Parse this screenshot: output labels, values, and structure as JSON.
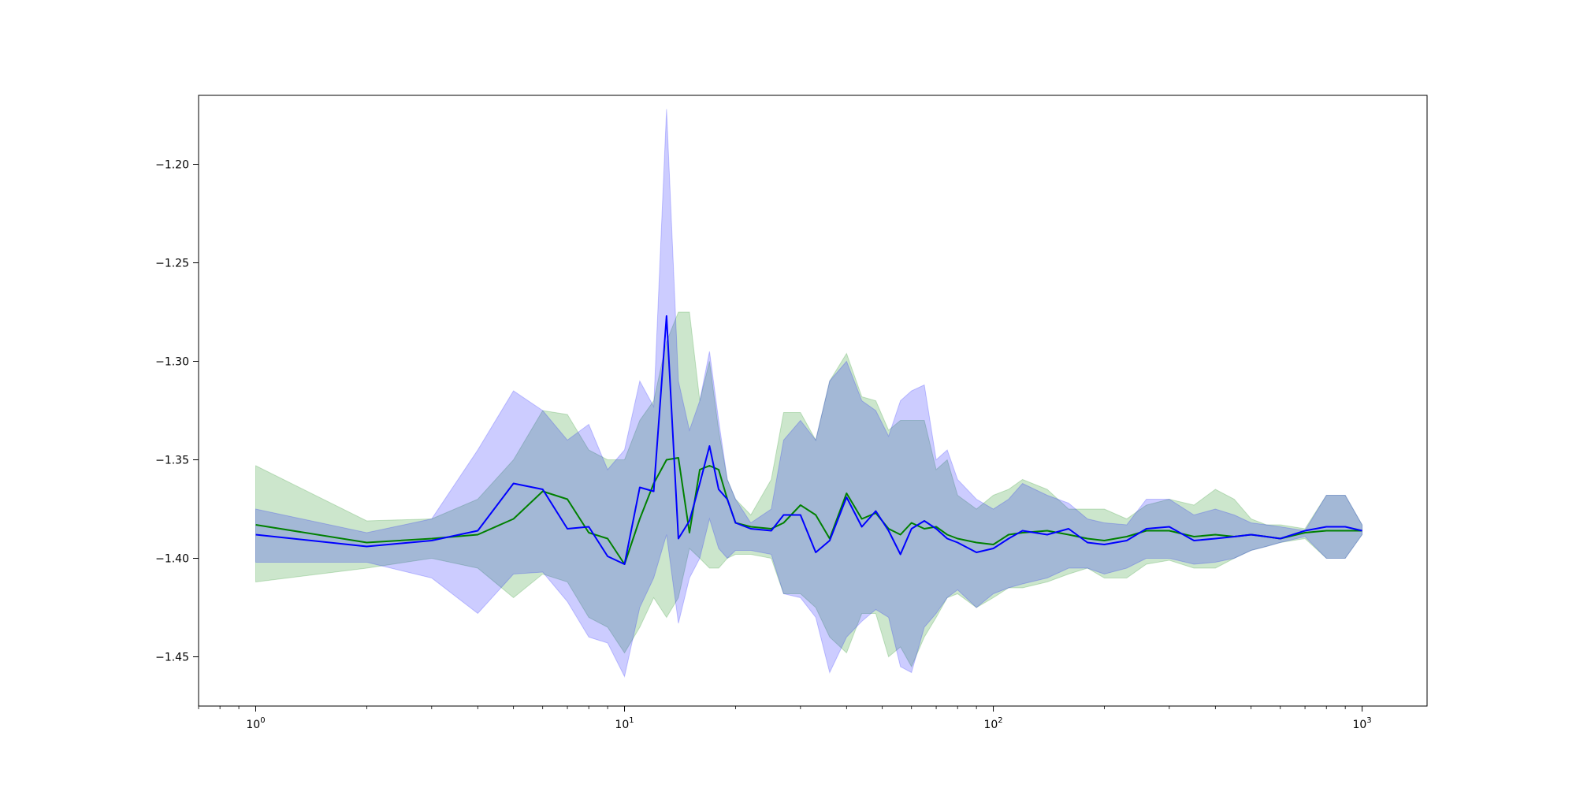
{
  "chart_data": {
    "type": "line",
    "title": "",
    "xlabel": "",
    "ylabel": "",
    "x_scale": "log",
    "xlim": [
      0.7,
      1500
    ],
    "ylim": [
      -1.475,
      -1.165
    ],
    "grid": false,
    "x_major_ticks": [
      {
        "value": 1,
        "base": "10",
        "exp": "0"
      },
      {
        "value": 10,
        "base": "10",
        "exp": "1"
      },
      {
        "value": 100,
        "base": "10",
        "exp": "2"
      },
      {
        "value": 1000,
        "base": "10",
        "exp": "3"
      }
    ],
    "y_ticks": [
      {
        "value": -1.2,
        "label": "−1.20"
      },
      {
        "value": -1.25,
        "label": "−1.25"
      },
      {
        "value": -1.3,
        "label": "−1.30"
      },
      {
        "value": -1.35,
        "label": "−1.35"
      },
      {
        "value": -1.4,
        "label": "−1.40"
      },
      {
        "value": -1.45,
        "label": "−1.45"
      }
    ],
    "series": [
      {
        "color": "#008000",
        "band_color": "#008000",
        "band_opacity": 0.2,
        "x": [
          1,
          2,
          3,
          4,
          5,
          6,
          7,
          8,
          9,
          10,
          11,
          12,
          13,
          14,
          15,
          16,
          17,
          18,
          19,
          20,
          22,
          25,
          27,
          30,
          33,
          36,
          40,
          44,
          48,
          52,
          56,
          60,
          65,
          70,
          75,
          80,
          90,
          100,
          110,
          120,
          140,
          160,
          180,
          200,
          230,
          260,
          300,
          350,
          400,
          450,
          500,
          550,
          600,
          700,
          800,
          900,
          1000
        ],
        "y": [
          -1.383,
          -1.392,
          -1.39,
          -1.388,
          -1.38,
          -1.366,
          -1.37,
          -1.387,
          -1.39,
          -1.403,
          -1.38,
          -1.362,
          -1.35,
          -1.349,
          -1.387,
          -1.355,
          -1.353,
          -1.355,
          -1.37,
          -1.382,
          -1.384,
          -1.385,
          -1.382,
          -1.373,
          -1.378,
          -1.39,
          -1.367,
          -1.38,
          -1.377,
          -1.385,
          -1.388,
          -1.382,
          -1.385,
          -1.384,
          -1.388,
          -1.39,
          -1.392,
          -1.393,
          -1.388,
          -1.387,
          -1.386,
          -1.388,
          -1.39,
          -1.391,
          -1.389,
          -1.386,
          -1.386,
          -1.389,
          -1.388,
          -1.389,
          -1.388,
          -1.389,
          -1.39,
          -1.387,
          -1.386,
          -1.386,
          -1.386
        ],
        "upper": [
          -1.353,
          -1.381,
          -1.38,
          -1.37,
          -1.35,
          -1.325,
          -1.327,
          -1.345,
          -1.35,
          -1.35,
          -1.33,
          -1.32,
          -1.29,
          -1.275,
          -1.275,
          -1.32,
          -1.3,
          -1.335,
          -1.36,
          -1.37,
          -1.378,
          -1.36,
          -1.326,
          -1.326,
          -1.34,
          -1.31,
          -1.296,
          -1.318,
          -1.32,
          -1.335,
          -1.33,
          -1.33,
          -1.33,
          -1.355,
          -1.35,
          -1.368,
          -1.375,
          -1.368,
          -1.365,
          -1.36,
          -1.365,
          -1.375,
          -1.375,
          -1.375,
          -1.38,
          -1.373,
          -1.37,
          -1.373,
          -1.365,
          -1.37,
          -1.38,
          -1.383,
          -1.383,
          -1.385,
          -1.368,
          -1.368,
          -1.383
        ],
        "lower": [
          -1.412,
          -1.405,
          -1.4,
          -1.405,
          -1.42,
          -1.408,
          -1.412,
          -1.43,
          -1.435,
          -1.448,
          -1.435,
          -1.42,
          -1.43,
          -1.42,
          -1.395,
          -1.4,
          -1.405,
          -1.405,
          -1.4,
          -1.398,
          -1.398,
          -1.4,
          -1.418,
          -1.418,
          -1.425,
          -1.44,
          -1.448,
          -1.428,
          -1.428,
          -1.45,
          -1.445,
          -1.455,
          -1.44,
          -1.43,
          -1.42,
          -1.418,
          -1.425,
          -1.42,
          -1.415,
          -1.415,
          -1.412,
          -1.408,
          -1.405,
          -1.41,
          -1.41,
          -1.403,
          -1.401,
          -1.405,
          -1.405,
          -1.4,
          -1.396,
          -1.394,
          -1.392,
          -1.39,
          -1.4,
          -1.4,
          -1.388
        ]
      },
      {
        "color": "#0000ff",
        "band_color": "#0000ff",
        "band_opacity": 0.2,
        "x": [
          1,
          2,
          3,
          4,
          5,
          6,
          7,
          8,
          9,
          10,
          11,
          12,
          13,
          14,
          15,
          16,
          17,
          18,
          19,
          20,
          22,
          25,
          27,
          30,
          33,
          36,
          40,
          44,
          48,
          52,
          56,
          60,
          65,
          70,
          75,
          80,
          90,
          100,
          110,
          120,
          140,
          160,
          180,
          200,
          230,
          260,
          300,
          350,
          400,
          450,
          500,
          550,
          600,
          700,
          800,
          900,
          1000
        ],
        "y": [
          -1.388,
          -1.394,
          -1.391,
          -1.386,
          -1.362,
          -1.365,
          -1.385,
          -1.384,
          -1.399,
          -1.403,
          -1.364,
          -1.366,
          -1.277,
          -1.39,
          -1.381,
          -1.362,
          -1.343,
          -1.365,
          -1.37,
          -1.382,
          -1.385,
          -1.386,
          -1.378,
          -1.378,
          -1.397,
          -1.391,
          -1.369,
          -1.384,
          -1.376,
          -1.386,
          -1.398,
          -1.385,
          -1.381,
          -1.385,
          -1.39,
          -1.392,
          -1.397,
          -1.395,
          -1.39,
          -1.386,
          -1.388,
          -1.385,
          -1.392,
          -1.393,
          -1.391,
          -1.385,
          -1.384,
          -1.391,
          -1.39,
          -1.389,
          -1.388,
          -1.389,
          -1.39,
          -1.386,
          -1.384,
          -1.384,
          -1.386
        ],
        "upper": [
          -1.375,
          -1.387,
          -1.38,
          -1.345,
          -1.315,
          -1.325,
          -1.34,
          -1.332,
          -1.355,
          -1.345,
          -1.31,
          -1.323,
          -1.172,
          -1.31,
          -1.335,
          -1.32,
          -1.295,
          -1.33,
          -1.36,
          -1.37,
          -1.382,
          -1.375,
          -1.34,
          -1.33,
          -1.34,
          -1.31,
          -1.3,
          -1.32,
          -1.325,
          -1.338,
          -1.32,
          -1.315,
          -1.312,
          -1.35,
          -1.345,
          -1.36,
          -1.37,
          -1.375,
          -1.37,
          -1.362,
          -1.368,
          -1.372,
          -1.38,
          -1.382,
          -1.383,
          -1.37,
          -1.37,
          -1.378,
          -1.375,
          -1.378,
          -1.382,
          -1.383,
          -1.384,
          -1.386,
          -1.368,
          -1.368,
          -1.383
        ],
        "lower": [
          -1.402,
          -1.402,
          -1.41,
          -1.428,
          -1.408,
          -1.407,
          -1.422,
          -1.44,
          -1.443,
          -1.46,
          -1.425,
          -1.41,
          -1.388,
          -1.433,
          -1.41,
          -1.4,
          -1.38,
          -1.395,
          -1.4,
          -1.396,
          -1.396,
          -1.398,
          -1.418,
          -1.42,
          -1.43,
          -1.458,
          -1.44,
          -1.432,
          -1.426,
          -1.43,
          -1.455,
          -1.458,
          -1.435,
          -1.428,
          -1.42,
          -1.416,
          -1.425,
          -1.418,
          -1.415,
          -1.413,
          -1.41,
          -1.405,
          -1.405,
          -1.408,
          -1.405,
          -1.4,
          -1.4,
          -1.403,
          -1.402,
          -1.4,
          -1.396,
          -1.394,
          -1.392,
          -1.389,
          -1.4,
          -1.4,
          -1.388
        ]
      }
    ]
  }
}
